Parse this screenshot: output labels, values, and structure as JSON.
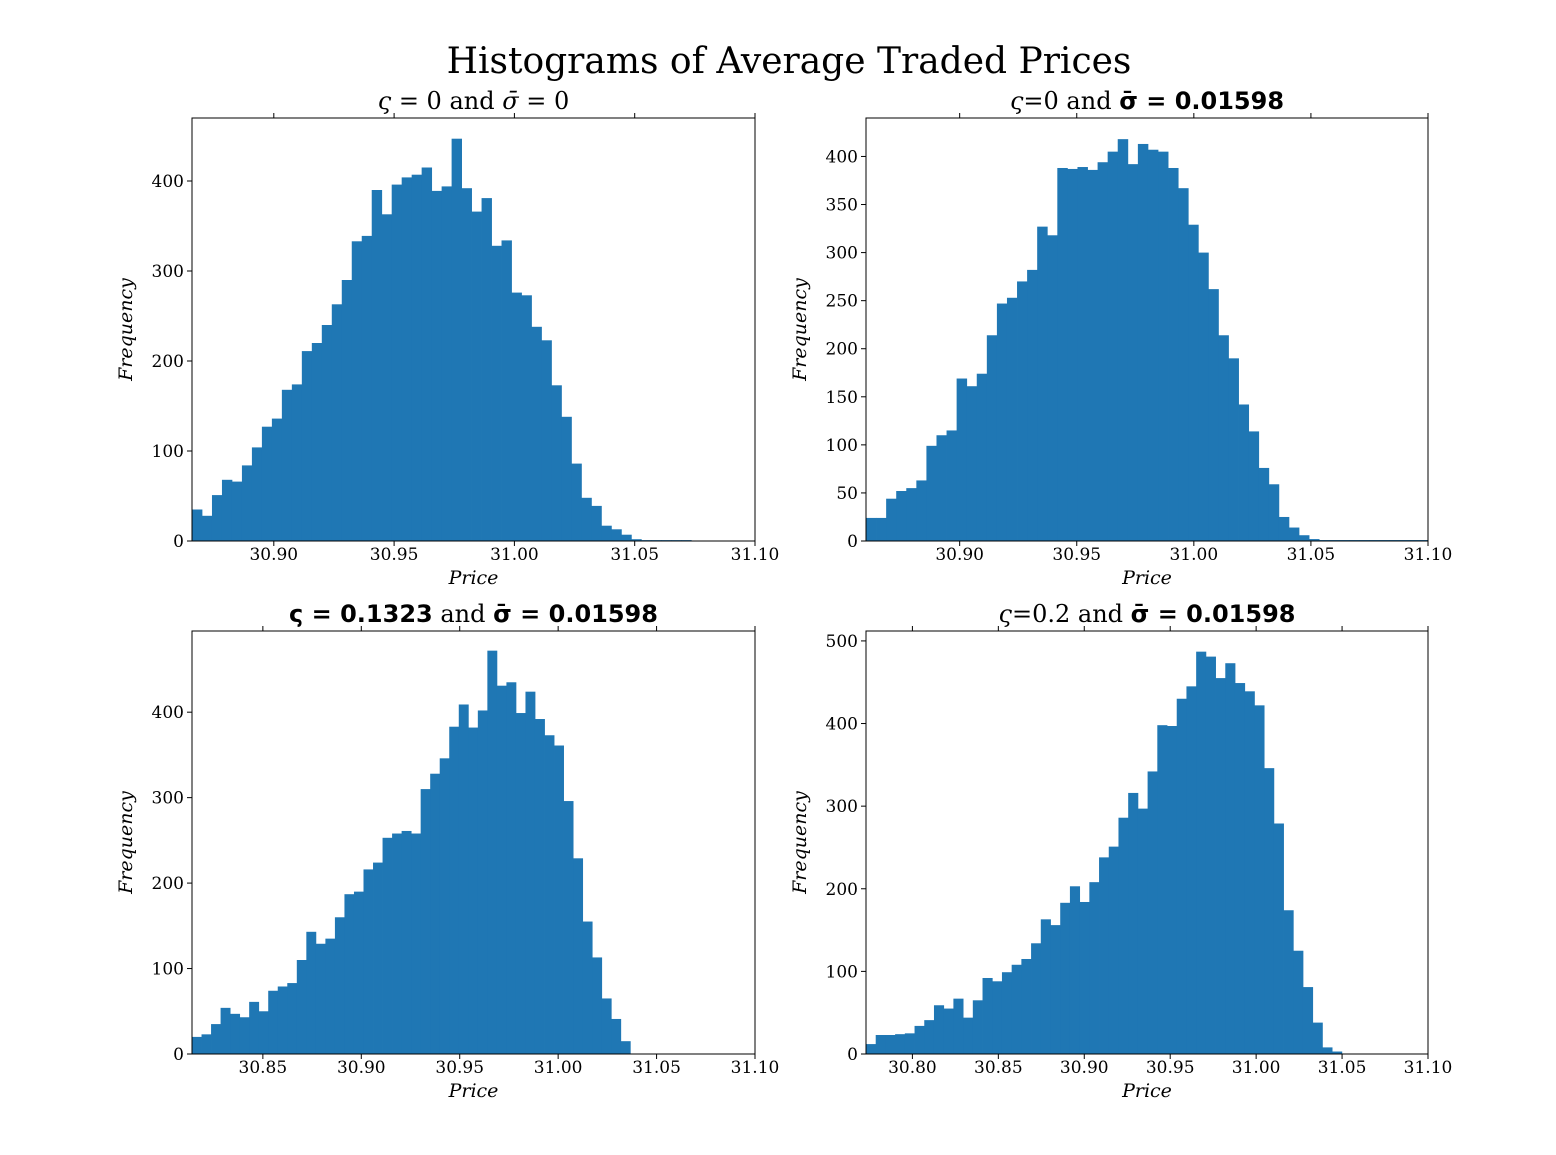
{
  "figure_title": "Histograms of Average Traded Prices",
  "chart_data": [
    {
      "type": "bar",
      "title": {
        "sym": "ς",
        "eq": " = 0",
        "mid": " and ",
        "sym2": "σ̄",
        "eq2": " = 0"
      },
      "xlabel": "Price",
      "ylabel": "Frequency",
      "xlim": [
        30.866,
        31.1
      ],
      "ylim": [
        0,
        470
      ],
      "xticks": [
        "30.90",
        "30.95",
        "31.00",
        "31.05",
        "31.10"
      ],
      "xtick_values": [
        30.9,
        30.95,
        31.0,
        31.05,
        31.1
      ],
      "yticks": [
        "0",
        "100",
        "200",
        "300",
        "400"
      ],
      "ytick_values": [
        0,
        100,
        200,
        300,
        400
      ],
      "bin_start": 30.866,
      "bin_width": 0.00415,
      "values": [
        35,
        28,
        51,
        68,
        66,
        84,
        104,
        127,
        136,
        168,
        174,
        211,
        220,
        240,
        263,
        290,
        333,
        339,
        390,
        363,
        396,
        404,
        407,
        415,
        389,
        394,
        447,
        392,
        366,
        381,
        328,
        334,
        276,
        273,
        238,
        223,
        173,
        138,
        86,
        48,
        39,
        17,
        13,
        7,
        2,
        1,
        1,
        1,
        1,
        1,
        0,
        0,
        0,
        0,
        0,
        0
      ]
    },
    {
      "type": "bar",
      "title": {
        "sym": "ς",
        "eq": "=0",
        "mid": " and ",
        "sym2": "σ̄",
        "eq2": " = 0.01598",
        "bold2": true
      },
      "xlabel": "Price",
      "ylabel": "Frequency",
      "xlim": [
        30.86,
        31.1
      ],
      "ylim": [
        0,
        440
      ],
      "xticks": [
        "30.90",
        "30.95",
        "31.00",
        "31.05",
        "31.10"
      ],
      "xtick_values": [
        30.9,
        30.95,
        31.0,
        31.05,
        31.1
      ],
      "yticks": [
        "0",
        "50",
        "100",
        "150",
        "200",
        "250",
        "300",
        "350",
        "400"
      ],
      "ytick_values": [
        0,
        50,
        100,
        150,
        200,
        250,
        300,
        350,
        400
      ],
      "bin_start": 30.86,
      "bin_width": 0.0043,
      "values": [
        24,
        24,
        44,
        52,
        55,
        63,
        99,
        110,
        115,
        169,
        161,
        174,
        214,
        247,
        253,
        270,
        282,
        327,
        318,
        388,
        387,
        389,
        386,
        394,
        405,
        418,
        392,
        413,
        407,
        405,
        388,
        367,
        329,
        300,
        262,
        214,
        190,
        142,
        114,
        76,
        59,
        25,
        14,
        6,
        2,
        1,
        1,
        1,
        1,
        1,
        1,
        1,
        1,
        1,
        1,
        1
      ]
    },
    {
      "type": "bar",
      "title": {
        "sym": "ς",
        "eq": " = 0.1323",
        "bold1": true,
        "mid": " and ",
        "sym2": "σ̄",
        "eq2": " = 0.01598",
        "bold2": true
      },
      "xlabel": "Price",
      "ylabel": "Frequency",
      "xlim": [
        30.814,
        31.1
      ],
      "ylim": [
        0,
        495
      ],
      "xticks": [
        "30.85",
        "30.90",
        "30.95",
        "31.00",
        "31.05",
        "31.10"
      ],
      "xtick_values": [
        30.85,
        30.9,
        30.95,
        31.0,
        31.05,
        31.1
      ],
      "yticks": [
        "0",
        "100",
        "200",
        "300",
        "400"
      ],
      "ytick_values": [
        0,
        100,
        200,
        300,
        400
      ],
      "bin_start": 30.814,
      "bin_width": 0.00484,
      "values": [
        20,
        23,
        35,
        54,
        47,
        43,
        61,
        50,
        74,
        79,
        83,
        110,
        143,
        129,
        135,
        160,
        187,
        190,
        216,
        224,
        253,
        258,
        261,
        258,
        310,
        328,
        346,
        383,
        409,
        382,
        402,
        472,
        431,
        435,
        399,
        424,
        392,
        373,
        361,
        296,
        229,
        155,
        113,
        65,
        41,
        15
      ]
    },
    {
      "type": "bar",
      "title": {
        "sym": "ς",
        "eq": "=0.2",
        "mid": " and ",
        "sym2": "σ̄",
        "eq2": " = 0.01598",
        "bold2": true
      },
      "xlabel": "Price",
      "ylabel": "Frequency",
      "xlim": [
        30.773,
        31.1
      ],
      "ylim": [
        0,
        512
      ],
      "xticks": [
        "30.80",
        "30.85",
        "30.90",
        "30.95",
        "31.00",
        "31.05",
        "31.10"
      ],
      "xtick_values": [
        30.8,
        30.85,
        30.9,
        30.95,
        31.0,
        31.05,
        31.1
      ],
      "yticks": [
        "0",
        "100",
        "200",
        "300",
        "400",
        "500"
      ],
      "ytick_values": [
        0,
        100,
        200,
        300,
        400,
        500
      ],
      "bin_start": 30.773,
      "bin_width": 0.00565,
      "values": [
        12,
        23,
        23,
        24,
        25,
        34,
        41,
        59,
        55,
        67,
        44,
        65,
        92,
        88,
        99,
        108,
        115,
        134,
        163,
        156,
        183,
        203,
        184,
        208,
        238,
        251,
        286,
        316,
        297,
        342,
        398,
        397,
        430,
        445,
        487,
        481,
        455,
        473,
        449,
        439,
        422,
        346,
        279,
        174,
        125,
        81,
        38,
        8,
        3
      ]
    }
  ]
}
